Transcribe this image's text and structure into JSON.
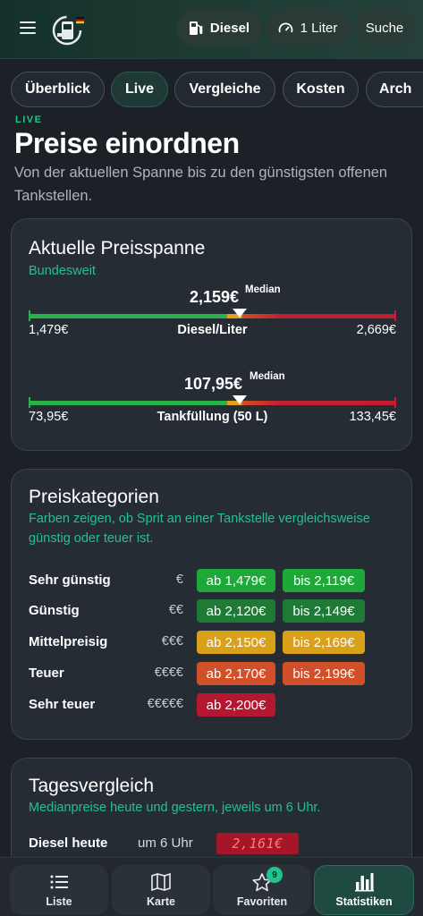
{
  "header": {
    "fuel_label": "Diesel",
    "amount_label": "1 Liter",
    "search_label": "Suche"
  },
  "tabs": [
    {
      "label": "Überblick",
      "active": false
    },
    {
      "label": "Live",
      "active": true
    },
    {
      "label": "Vergleiche",
      "active": false
    },
    {
      "label": "Kosten",
      "active": false
    },
    {
      "label": "Arch",
      "active": false
    }
  ],
  "page": {
    "kicker": "LIVE",
    "title": "Preise einordnen",
    "subtitle": "Von der aktuellen Spanne bis zu den günstigsten offenen Tankstellen."
  },
  "price_range": {
    "title": "Aktuelle Preisspanne",
    "subtitle": "Bundesweit",
    "median_label": "Median",
    "ranges": [
      {
        "label": "Diesel/Liter",
        "min": "1,479€",
        "max": "2,669€",
        "median": "2,159€",
        "median_fraction": 0.573
      },
      {
        "label": "Tankfüllung (50 L)",
        "min": "73,95€",
        "max": "133,45€",
        "median": "107,95€",
        "median_fraction": 0.573
      }
    ]
  },
  "categories": {
    "title": "Preiskategorien",
    "subtitle": "Farben zeigen, ob Sprit an einer Tankstelle vergleichsweise günstig oder teuer ist.",
    "items": [
      {
        "name": "Sehr günstig",
        "symbol": "€",
        "from": "ab 1,479€",
        "to": "bis 2,119€",
        "color": "#1fa83a"
      },
      {
        "name": "Günstig",
        "symbol": "€€",
        "from": "ab 2,120€",
        "to": "bis 2,149€",
        "color": "#1f7a36"
      },
      {
        "name": "Mittelpreisig",
        "symbol": "€€€",
        "from": "ab 2,150€",
        "to": "bis 2,169€",
        "color": "#d9a01a"
      },
      {
        "name": "Teuer",
        "symbol": "€€€€",
        "from": "ab 2,170€",
        "to": "bis 2,199€",
        "color": "#d1502a"
      },
      {
        "name": "Sehr teuer",
        "symbol": "€€€€€",
        "from": "ab 2,200€",
        "to": "",
        "color": "#b51630"
      }
    ]
  },
  "day_compare": {
    "title": "Tagesvergleich",
    "subtitle": "Medianpreise heute und gestern, jeweils um 6 Uhr.",
    "row_label": "Diesel heute",
    "row_time": "um 6 Uhr",
    "row_value": "2,161€"
  },
  "bottom_nav": [
    {
      "label": "Liste",
      "icon": "list-icon",
      "active": false
    },
    {
      "label": "Karte",
      "icon": "map-icon",
      "active": false
    },
    {
      "label": "Favoriten",
      "icon": "star-icon",
      "active": false,
      "badge": "9"
    },
    {
      "label": "Statistiken",
      "icon": "bar-chart-icon",
      "active": true
    }
  ],
  "colors": {
    "accent": "#21c38d",
    "background": "#1c2127",
    "card": "#262c33"
  }
}
